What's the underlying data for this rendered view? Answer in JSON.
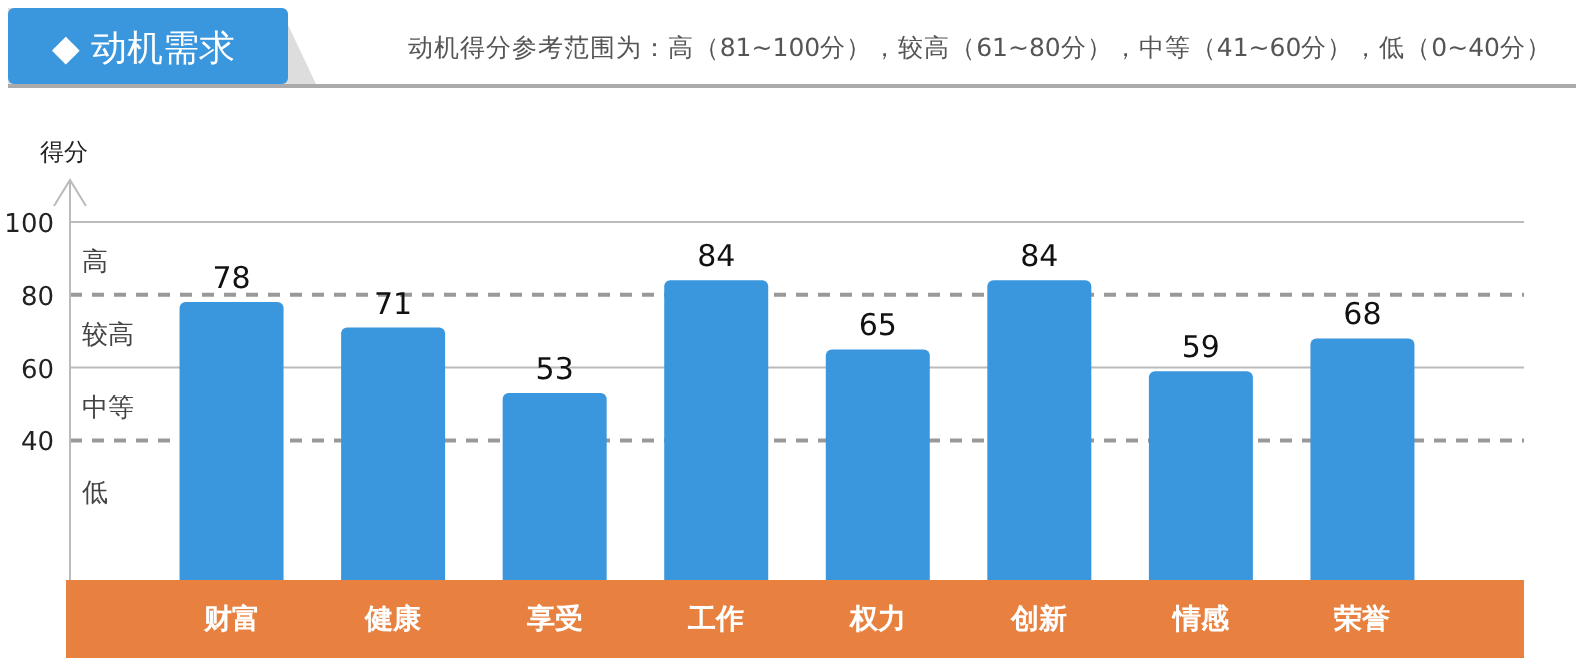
{
  "chart_data": {
    "type": "bar",
    "title": "◆ 动机需求",
    "subtitle": "动机得分参考范围为：高（81~100分），较高（61~80分），中等（41~60分），低（0~40分）",
    "ylabel": "得分",
    "categories": [
      "财富",
      "健康",
      "享受",
      "工作",
      "权力",
      "创新",
      "情感",
      "荣誉"
    ],
    "values": [
      78,
      71,
      53,
      84,
      65,
      84,
      59,
      68
    ],
    "color": "#3a96dd",
    "data_labels": true,
    "ylim": [
      0,
      100
    ],
    "yticks": [
      40,
      60,
      80,
      100
    ],
    "ref_lines": [
      {
        "axis": "y",
        "value": 100,
        "color": "#bbbbbb",
        "line_style": "solid"
      },
      {
        "axis": "y",
        "value": 80,
        "color": "#999999",
        "line_style": "dashed"
      },
      {
        "axis": "y",
        "value": 60,
        "color": "#bbbbbb",
        "line_style": "solid"
      },
      {
        "axis": "y",
        "value": 40,
        "color": "#999999",
        "line_style": "dashed"
      }
    ],
    "annotations": [
      "高",
      "较高",
      "中等",
      "低"
    ]
  }
}
